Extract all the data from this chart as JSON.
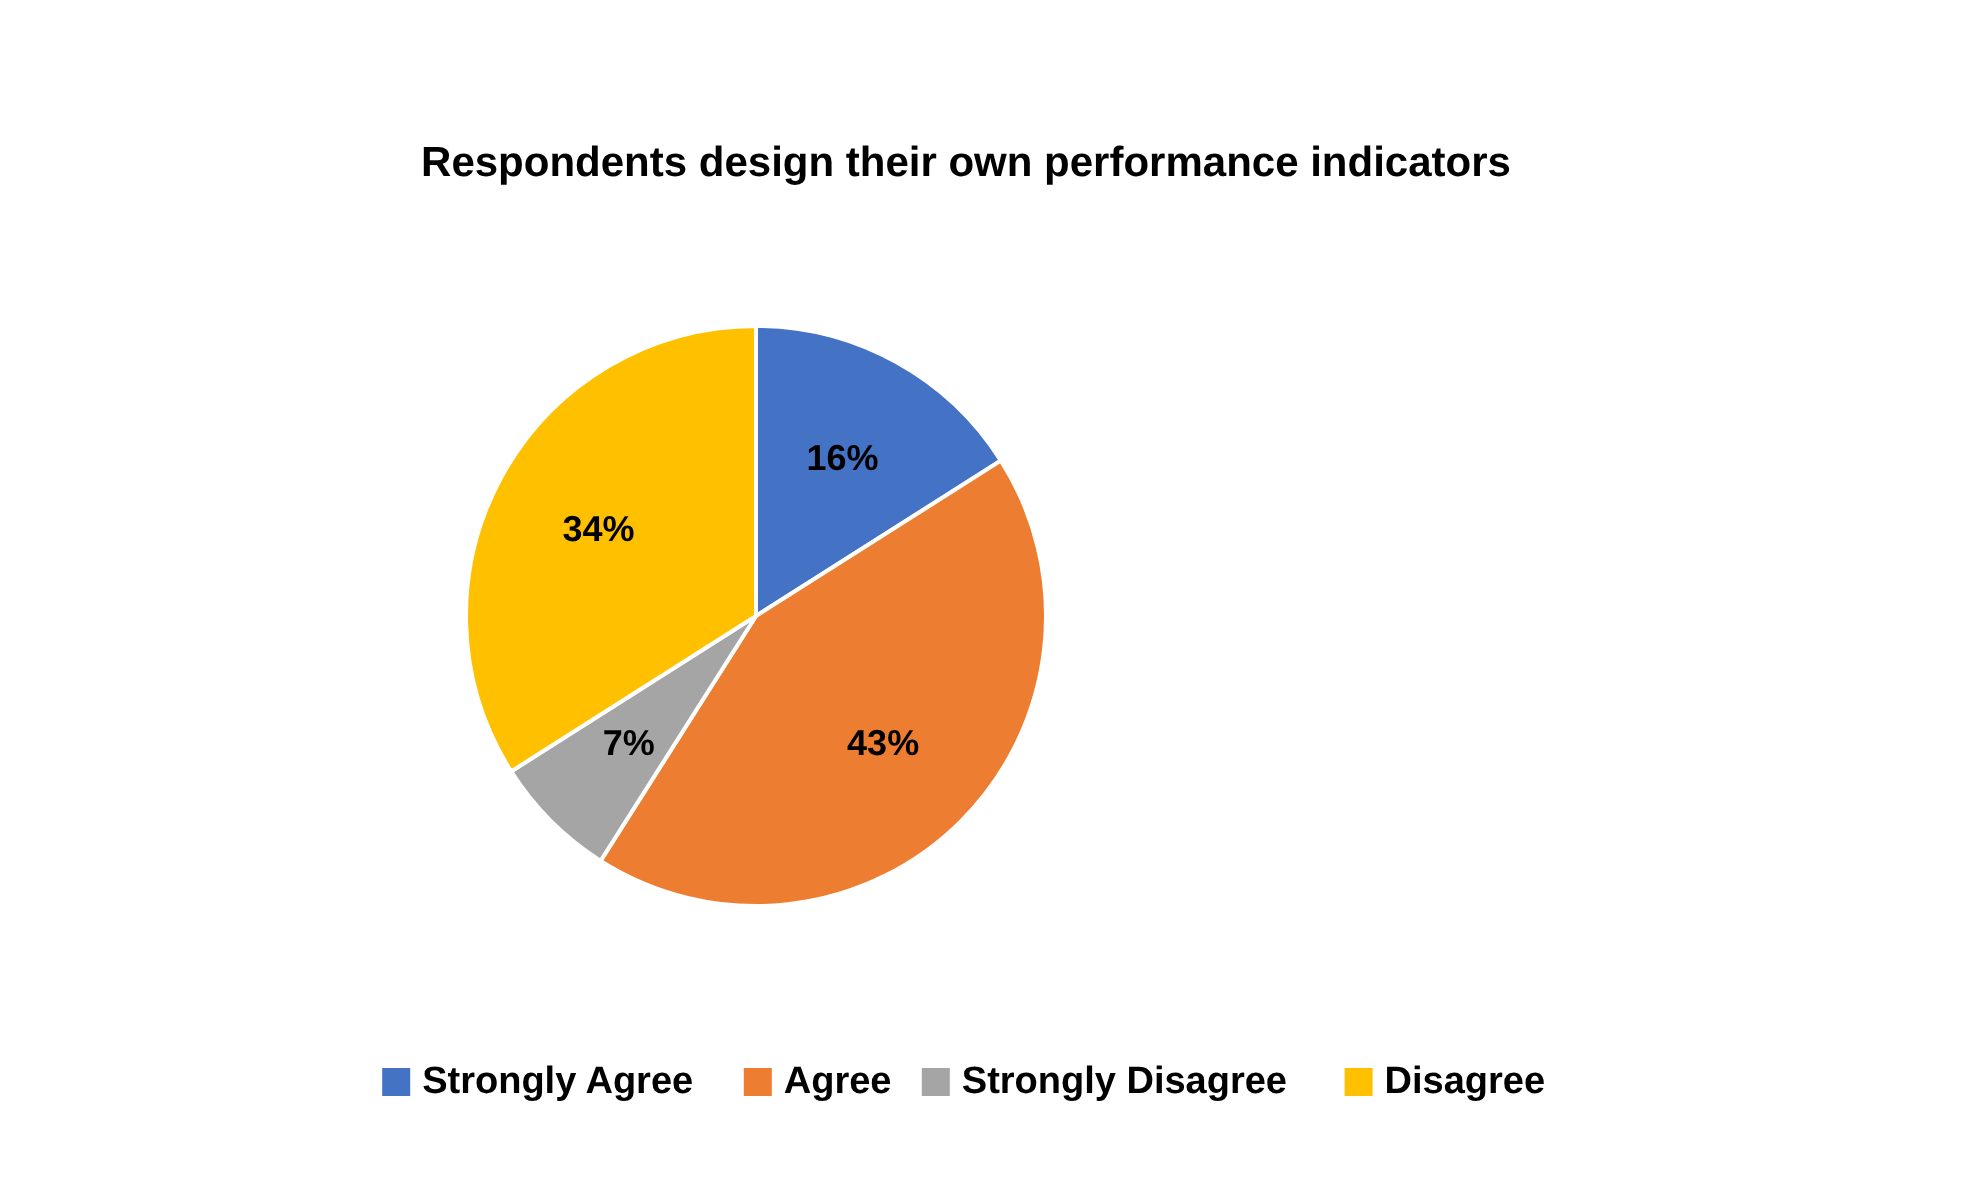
{
  "chart_data": {
    "type": "pie",
    "title": "Respondents design their own performance indicators",
    "categories": [
      "Strongly Agree",
      "Agree",
      "Strongly Disagree",
      "Disagree"
    ],
    "values": [
      16,
      43,
      7,
      34
    ],
    "colors": [
      "#4472c4",
      "#ed7d31",
      "#a5a5a5",
      "#ffc000"
    ],
    "value_labels": [
      "16%",
      "43%",
      "7%",
      "34%"
    ],
    "legend": "bottom"
  }
}
